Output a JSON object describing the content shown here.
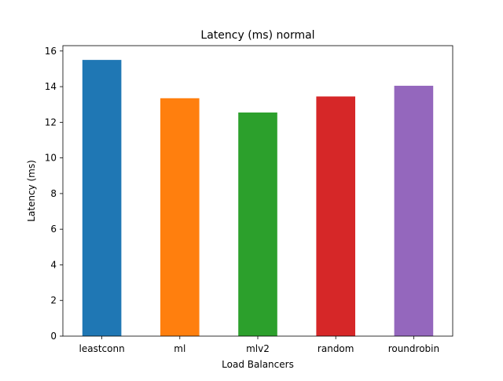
{
  "chart_data": {
    "type": "bar",
    "title": "Latency (ms) normal",
    "xlabel": "Load Balancers",
    "ylabel": "Latency (ms)",
    "categories": [
      "leastconn",
      "ml",
      "mlv2",
      "random",
      "roundrobin"
    ],
    "values": [
      15.5,
      13.35,
      12.55,
      13.45,
      14.05
    ],
    "colors": [
      "#1f77b4",
      "#ff7f0e",
      "#2ca02c",
      "#d62728",
      "#9467bd"
    ],
    "ylim": [
      0,
      16.3
    ],
    "yticks": [
      0,
      2,
      4,
      6,
      8,
      10,
      12,
      14,
      16
    ],
    "grid": false,
    "legend": "none"
  }
}
